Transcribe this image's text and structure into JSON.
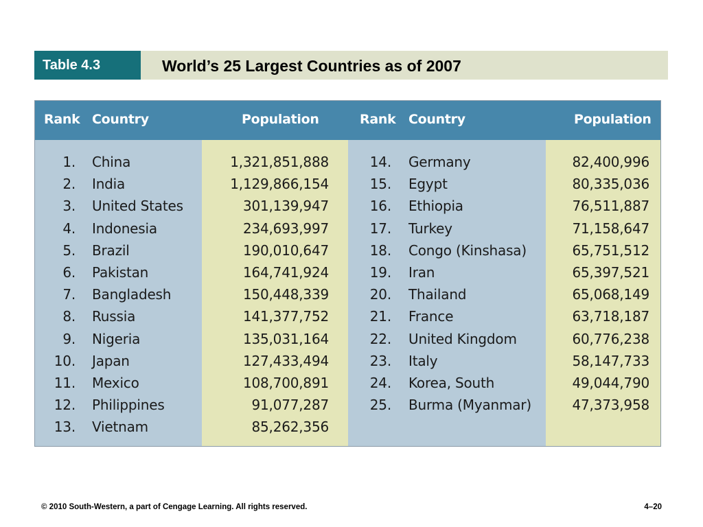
{
  "header": {
    "table_label": "Table 4.3",
    "title": "World’s 25 Largest Countries as of 2007"
  },
  "table": {
    "columns": {
      "rank_left": "Rank",
      "country_left": "Country",
      "population_left": "Population",
      "rank_right": "Rank",
      "country_right": "Country",
      "population_right": "Population"
    },
    "rows": [
      {
        "left": {
          "rank": "1.",
          "country": "China",
          "population": "1,321,851,888"
        },
        "right": {
          "rank": "14.",
          "country": "Germany",
          "population": "82,400,996"
        }
      },
      {
        "left": {
          "rank": "2.",
          "country": "India",
          "population": "1,129,866,154"
        },
        "right": {
          "rank": "15.",
          "country": "Egypt",
          "population": "80,335,036"
        }
      },
      {
        "left": {
          "rank": "3.",
          "country": "United States",
          "population": "301,139,947"
        },
        "right": {
          "rank": "16.",
          "country": "Ethiopia",
          "population": "76,511,887"
        }
      },
      {
        "left": {
          "rank": "4.",
          "country": "Indonesia",
          "population": "234,693,997"
        },
        "right": {
          "rank": "17.",
          "country": "Turkey",
          "population": "71,158,647"
        }
      },
      {
        "left": {
          "rank": "5.",
          "country": "Brazil",
          "population": "190,010,647"
        },
        "right": {
          "rank": "18.",
          "country": "Congo (Kinshasa)",
          "population": "65,751,512"
        }
      },
      {
        "left": {
          "rank": "6.",
          "country": "Pakistan",
          "population": "164,741,924"
        },
        "right": {
          "rank": "19.",
          "country": "Iran",
          "population": "65,397,521"
        }
      },
      {
        "left": {
          "rank": "7.",
          "country": "Bangladesh",
          "population": "150,448,339"
        },
        "right": {
          "rank": "20.",
          "country": "Thailand",
          "population": "65,068,149"
        }
      },
      {
        "left": {
          "rank": "8.",
          "country": "Russia",
          "population": "141,377,752"
        },
        "right": {
          "rank": "21.",
          "country": "France",
          "population": "63,718,187"
        }
      },
      {
        "left": {
          "rank": "9.",
          "country": "Nigeria",
          "population": "135,031,164"
        },
        "right": {
          "rank": "22.",
          "country": "United Kingdom",
          "population": "60,776,238"
        }
      },
      {
        "left": {
          "rank": "10.",
          "country": "Japan",
          "population": "127,433,494"
        },
        "right": {
          "rank": "23.",
          "country": "Italy",
          "population": "58,147,733"
        }
      },
      {
        "left": {
          "rank": "11.",
          "country": "Mexico",
          "population": "108,700,891"
        },
        "right": {
          "rank": "24.",
          "country": "Korea, South",
          "population": "49,044,790"
        }
      },
      {
        "left": {
          "rank": "12.",
          "country": "Philippines",
          "population": "91,077,287"
        },
        "right": {
          "rank": "25.",
          "country": "Burma (Myanmar)",
          "population": "47,373,958"
        }
      },
      {
        "left": {
          "rank": "13.",
          "country": "Vietnam",
          "population": "85,262,356"
        },
        "right": {
          "rank": "",
          "country": "",
          "population": ""
        }
      }
    ]
  },
  "footer": {
    "copyright": "© 2010 South-Western, a part of Cengage Learning. All rights reserved.",
    "page_number": "4–20"
  },
  "colors": {
    "label_bg": "#16707a",
    "title_bar_bg": "#dfe2cc",
    "header_bg": "#4787ab",
    "blue_column": "#b7cbd9",
    "yellow_column": "#e4e6b9"
  }
}
